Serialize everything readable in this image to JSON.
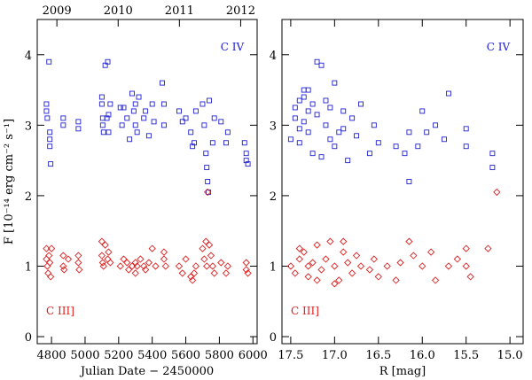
{
  "chart_data": [
    {
      "type": "scatter",
      "xlabel": "Julian Date − 2450000",
      "ylabel": "F [10⁻¹⁴ erg cm⁻² s⁻¹]",
      "xlim": [
        4715,
        6025
      ],
      "xticks": [
        4800,
        5000,
        5200,
        5400,
        5600,
        5800,
        6000
      ],
      "x2ticks": [
        {
          "value": 4832,
          "label": "2009"
        },
        {
          "value": 5197,
          "label": "2010"
        },
        {
          "value": 5562,
          "label": "2011"
        },
        {
          "value": 5927,
          "label": "2012"
        }
      ],
      "ylim": [
        -0.1,
        4.5
      ],
      "yticks": [
        0,
        1,
        2,
        3,
        4
      ],
      "series": [
        {
          "name": "C IV",
          "color": "#2020d0",
          "marker": "square",
          "x": [
            4770,
            4770,
            4775,
            4785,
            4790,
            4790,
            4790,
            4795,
            4870,
            4870,
            4960,
            4960,
            5100,
            5100,
            5105,
            5105,
            5110,
            5120,
            5135,
            5140,
            5130,
            5150,
            5140,
            5210,
            5220,
            5230,
            5250,
            5265,
            5280,
            5290,
            5300,
            5300,
            5310,
            5320,
            5350,
            5360,
            5380,
            5400,
            5410,
            5460,
            5470,
            5470,
            5560,
            5580,
            5600,
            5630,
            5640,
            5650,
            5660,
            5700,
            5710,
            5720,
            5725,
            5730,
            5735,
            5740,
            5760,
            5770,
            5810,
            5850,
            5840,
            5950,
            5960,
            5960,
            5970
          ],
          "values": [
            3.3,
            3.2,
            3.1,
            3.9,
            2.9,
            2.8,
            2.7,
            2.45,
            3.1,
            3.0,
            2.95,
            3.05,
            3.4,
            3.3,
            3.1,
            3.0,
            2.9,
            3.85,
            3.9,
            3.15,
            3.1,
            3.3,
            2.9,
            3.25,
            3.0,
            3.25,
            3.1,
            2.8,
            3.45,
            3.2,
            3.3,
            3.0,
            2.9,
            3.4,
            3.1,
            3.2,
            2.85,
            3.3,
            3.05,
            3.6,
            3.3,
            3.0,
            3.2,
            3.05,
            3.1,
            2.9,
            2.7,
            2.75,
            3.2,
            3.3,
            3.0,
            2.6,
            2.4,
            2.2,
            2.05,
            3.35,
            2.75,
            3.1,
            3.05,
            2.9,
            2.75,
            2.75,
            2.6,
            2.5,
            2.45
          ]
        },
        {
          "name": "C III]",
          "color": "#e02020",
          "marker": "diamond",
          "x": [
            4770,
            4770,
            4775,
            4780,
            4785,
            4790,
            4795,
            4800,
            4870,
            4870,
            4875,
            4900,
            4960,
            4960,
            4965,
            5100,
            5100,
            5105,
            5110,
            5120,
            5135,
            5140,
            5150,
            5210,
            5230,
            5250,
            5260,
            5280,
            5300,
            5300,
            5310,
            5330,
            5350,
            5360,
            5380,
            5400,
            5420,
            5470,
            5470,
            5480,
            5560,
            5580,
            5600,
            5630,
            5640,
            5650,
            5660,
            5700,
            5710,
            5720,
            5725,
            5730,
            5740,
            5750,
            5760,
            5770,
            5810,
            5850,
            5840,
            5960,
            5960,
            5970
          ],
          "values": [
            1.25,
            1.1,
            1.0,
            0.9,
            1.15,
            1.05,
            0.85,
            1.25,
            1.15,
            1.0,
            0.95,
            1.1,
            1.15,
            1.05,
            0.95,
            1.35,
            1.15,
            1.05,
            1.0,
            1.3,
            1.1,
            1.2,
            1.05,
            1.0,
            1.1,
            1.05,
            0.95,
            1.0,
            1.05,
            0.9,
            1.0,
            1.1,
            1.0,
            0.95,
            1.05,
            1.25,
            1.0,
            1.2,
            1.1,
            1.0,
            1.0,
            0.9,
            1.1,
            0.85,
            0.8,
            0.9,
            1.0,
            1.25,
            1.1,
            1.35,
            1.0,
            2.05,
            1.3,
            1.15,
            1.0,
            0.9,
            1.05,
            1.0,
            0.9,
            1.05,
            0.95,
            0.9
          ]
        }
      ]
    },
    {
      "type": "scatter",
      "xlabel": "R [mag]",
      "xlim": [
        17.6,
        14.85
      ],
      "xticks": [
        17.5,
        {
          "value": 17,
          "label": "17.0"
        },
        16.5,
        {
          "value": 16,
          "label": "16.0"
        },
        15.5,
        {
          "value": 15,
          "label": "15.0"
        }
      ],
      "ylim": [
        -0.1,
        4.5
      ],
      "yticks": [
        0,
        1,
        2,
        3,
        4
      ],
      "series": [
        {
          "name": "C IV",
          "color": "#2020d0",
          "marker": "square",
          "x": [
            17.4,
            17.35,
            17.3,
            17.45,
            17.5,
            17.4,
            17.35,
            17.25,
            17.3,
            17.2,
            17.25,
            17.15,
            17.2,
            17.15,
            17.1,
            17.05,
            17.0,
            17.0,
            16.95,
            16.9,
            16.85,
            16.8,
            16.75,
            16.7,
            16.6,
            16.55,
            16.5,
            17.35,
            17.3,
            17.4,
            17.45,
            16.3,
            16.2,
            16.15,
            16.15,
            16.05,
            16.0,
            15.95,
            15.85,
            15.75,
            15.7,
            15.5,
            15.5,
            15.2,
            15.2,
            17.1,
            16.9,
            17.05
          ],
          "values": [
            3.35,
            3.4,
            3.2,
            3.1,
            2.8,
            2.75,
            3.05,
            3.3,
            2.9,
            3.15,
            2.6,
            2.55,
            3.9,
            3.85,
            3.0,
            3.25,
            2.7,
            3.6,
            2.9,
            3.2,
            2.5,
            3.1,
            2.85,
            3.3,
            2.6,
            3.0,
            2.75,
            3.5,
            3.5,
            2.95,
            3.25,
            2.7,
            2.6,
            2.9,
            2.2,
            2.7,
            3.2,
            2.9,
            3.0,
            2.8,
            3.45,
            2.95,
            2.7,
            2.6,
            2.4,
            3.35,
            2.95,
            2.8
          ]
        },
        {
          "name": "C III]",
          "color": "#e02020",
          "marker": "diamond",
          "x": [
            17.5,
            17.45,
            17.4,
            17.35,
            17.3,
            17.3,
            17.25,
            17.2,
            17.15,
            17.1,
            17.05,
            17.0,
            16.95,
            16.9,
            16.85,
            16.8,
            16.75,
            16.7,
            16.6,
            16.55,
            16.5,
            16.4,
            16.25,
            16.15,
            16.1,
            16.0,
            15.9,
            15.85,
            15.7,
            15.5,
            15.5,
            15.45,
            15.25,
            15.15,
            17.4,
            17.2,
            16.9,
            17.0,
            16.3,
            15.6
          ],
          "values": [
            1.0,
            0.9,
            1.1,
            1.2,
            1.0,
            0.85,
            1.05,
            1.3,
            0.95,
            1.1,
            1.35,
            1.0,
            0.8,
            1.2,
            1.05,
            0.9,
            1.15,
            1.0,
            0.95,
            1.1,
            0.85,
            1.0,
            1.05,
            1.35,
            1.15,
            1.0,
            1.2,
            0.8,
            1.0,
            1.25,
            1.0,
            0.85,
            1.25,
            2.05,
            1.25,
            0.8,
            1.35,
            0.75,
            0.8,
            1.1
          ]
        }
      ]
    }
  ]
}
